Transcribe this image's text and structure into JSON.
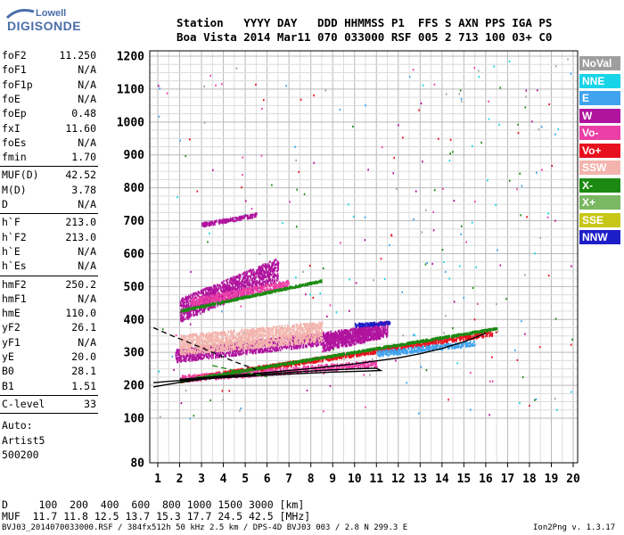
{
  "logo": {
    "top_text": "Lowell",
    "bottom_text": "DIGISONDE"
  },
  "header": {
    "line1": "Station   YYYY DAY   DDD HHMMSS P1  FFS S AXN PPS IGA PS",
    "line2": "Boa Vista 2014 Mar11 070 033000 RSF 005 2 713 100 03+ C0"
  },
  "params": {
    "group1": [
      {
        "name": "foF2",
        "value": "11.250"
      },
      {
        "name": "foF1",
        "value": "N/A"
      },
      {
        "name": "foF1p",
        "value": "N/A"
      },
      {
        "name": "foE",
        "value": "N/A"
      },
      {
        "name": "foEp",
        "value": "0.48"
      },
      {
        "name": "fxI",
        "value": "11.60"
      },
      {
        "name": "foEs",
        "value": "N/A"
      },
      {
        "name": "fmin",
        "value": "1.70"
      }
    ],
    "group2": [
      {
        "name": "MUF(D)",
        "value": "42.52"
      },
      {
        "name": "M(D)",
        "value": "3.78"
      },
      {
        "name": "D",
        "value": "N/A"
      }
    ],
    "group3": [
      {
        "name": "h`F",
        "value": "213.0"
      },
      {
        "name": "h`F2",
        "value": "213.0"
      },
      {
        "name": "h`E",
        "value": "N/A"
      },
      {
        "name": "h`Es",
        "value": "N/A"
      }
    ],
    "group4": [
      {
        "name": "hmF2",
        "value": "250.2"
      },
      {
        "name": "hmF1",
        "value": "N/A"
      },
      {
        "name": "hmE",
        "value": "110.0"
      },
      {
        "name": "yF2",
        "value": "26.1"
      },
      {
        "name": "yF1",
        "value": "N/A"
      },
      {
        "name": "yE",
        "value": "20.0"
      },
      {
        "name": "B0",
        "value": "28.1"
      },
      {
        "name": "B1",
        "value": "1.51"
      }
    ],
    "group5": [
      {
        "name": "C-level",
        "value": "33"
      }
    ],
    "auto_lines": [
      "Auto:",
      "Artist5",
      "500200"
    ]
  },
  "legend": [
    {
      "label": "NoVal",
      "color": "#9e9e9e"
    },
    {
      "label": "NNE",
      "color": "#17d4e8"
    },
    {
      "label": "E",
      "color": "#3fa3ee"
    },
    {
      "label": "W",
      "color": "#b0139e"
    },
    {
      "label": "Vo-",
      "color": "#ec3fa6"
    },
    {
      "label": "Vo+",
      "color": "#e8101e"
    },
    {
      "label": "SSW",
      "color": "#f3b4ad"
    },
    {
      "label": "X-",
      "color": "#1c8a12"
    },
    {
      "label": "X+",
      "color": "#7ab862"
    },
    {
      "label": "SSE",
      "color": "#c7c718"
    },
    {
      "label": "NNW",
      "color": "#1e1ec8"
    }
  ],
  "conversion": {
    "d_line": "D     100  200  400  600  800 1000 1500 3000 [km]",
    "muf_line": "MUF  11.7 11.8 12.5 13.7 15.3 17.7 24.5 42.5 [MHz]"
  },
  "footer": {
    "left": "BVJ03_2014070033000.RSF / 384fx512h 50 kHz 2.5 km / DPS-4D BVJ03 003 / 2.8 N 299.3 E",
    "right": "Ion2Png v. 1.3.17"
  },
  "chart_data": {
    "type": "scatter",
    "title": "",
    "xlabel": "",
    "ylabel": "",
    "xlim": [
      0.75,
      20.25
    ],
    "ylim": [
      80,
      1210
    ],
    "x_ticks": [
      1,
      2,
      3,
      4,
      5,
      6,
      7,
      8,
      9,
      10,
      11,
      12,
      13,
      14,
      15,
      16,
      17,
      18,
      19,
      20
    ],
    "y_ticks": [
      80,
      100,
      200,
      300,
      400,
      500,
      600,
      700,
      800,
      900,
      1000,
      1100,
      1200
    ],
    "grid": true,
    "layers": [
      {
        "name": "W",
        "color": "#b0139e",
        "traces": [
          {
            "x0": 1.8,
            "x1": 11.2,
            "y0": 292,
            "y1": 365,
            "spread": 20
          },
          {
            "x0": 2.0,
            "x1": 6.5,
            "y0": 430,
            "y1": 555,
            "spread": 35
          },
          {
            "x0": 3.0,
            "x1": 5.5,
            "y0": 690,
            "y1": 720,
            "spread": 6
          },
          {
            "x0": 8.5,
            "x1": 11.5,
            "y0": 330,
            "y1": 375,
            "spread": 25
          }
        ]
      },
      {
        "name": "Vo+",
        "color": "#e8101e",
        "traces": [
          {
            "x0": 2.0,
            "x1": 16.3,
            "y0": 218,
            "y1": 360,
            "spread": 7
          }
        ]
      },
      {
        "name": "Vo-",
        "color": "#ec3fa6",
        "traces": [
          {
            "x0": 2.0,
            "x1": 11.0,
            "y0": 222,
            "y1": 268,
            "spread": 10
          },
          {
            "x0": 2.5,
            "x1": 7.0,
            "y0": 455,
            "y1": 510,
            "spread": 12
          }
        ]
      },
      {
        "name": "SSW",
        "color": "#f3b4ad",
        "traces": [
          {
            "x0": 2.0,
            "x1": 8.5,
            "y0": 325,
            "y1": 365,
            "spread": 30
          }
        ]
      },
      {
        "name": "E",
        "color": "#3fa3ee",
        "traces": [
          {
            "x0": 11.0,
            "x1": 15.5,
            "y0": 298,
            "y1": 330,
            "spread": 8
          }
        ]
      },
      {
        "name": "NNW",
        "color": "#1e1ec8",
        "traces": [
          {
            "x0": 10.0,
            "x1": 11.6,
            "y0": 385,
            "y1": 392,
            "spread": 5
          }
        ]
      },
      {
        "name": "X-",
        "color": "#1c8a12",
        "traces": [
          {
            "x0": 2.0,
            "x1": 16.5,
            "y0": 215,
            "y1": 375,
            "spread": 3
          },
          {
            "x0": 2.0,
            "x1": 8.5,
            "y0": 428,
            "y1": 520,
            "spread": 3
          }
        ]
      }
    ],
    "curves": [
      {
        "name": "F2-profile",
        "style": "solid",
        "color": "#000000",
        "x": [
          0.8,
          2,
          3,
          4,
          5,
          6,
          7,
          8,
          9,
          10,
          11,
          11.2,
          10.5,
          9,
          7,
          5,
          3,
          1.5,
          0.8
        ],
        "y": [
          195,
          209,
          218,
          224,
          230,
          235,
          239,
          243,
          247,
          250,
          252,
          245,
          243,
          240,
          234,
          227,
          219,
          212,
          208
        ]
      },
      {
        "name": "trace-fit",
        "style": "solid",
        "color": "#000000",
        "x": [
          2,
          4,
          6,
          8,
          10,
          12,
          13,
          14,
          15,
          16
        ],
        "y": [
          218,
          228,
          239,
          251,
          265,
          283,
          296,
          312,
          332,
          358
        ]
      },
      {
        "name": "dashed-profile",
        "style": "dashed",
        "color": "#000000",
        "x": [
          0.8,
          1.6,
          2.5,
          3.5,
          4.5,
          5.5
        ],
        "y": [
          375,
          352,
          328,
          300,
          272,
          248
        ]
      },
      {
        "name": "x-trace-fit",
        "style": "dashed",
        "color": "#1c8a12",
        "x": [
          3.5,
          4.5,
          5.5,
          6.0
        ],
        "y": [
          260,
          245,
          232,
          226
        ]
      }
    ]
  }
}
